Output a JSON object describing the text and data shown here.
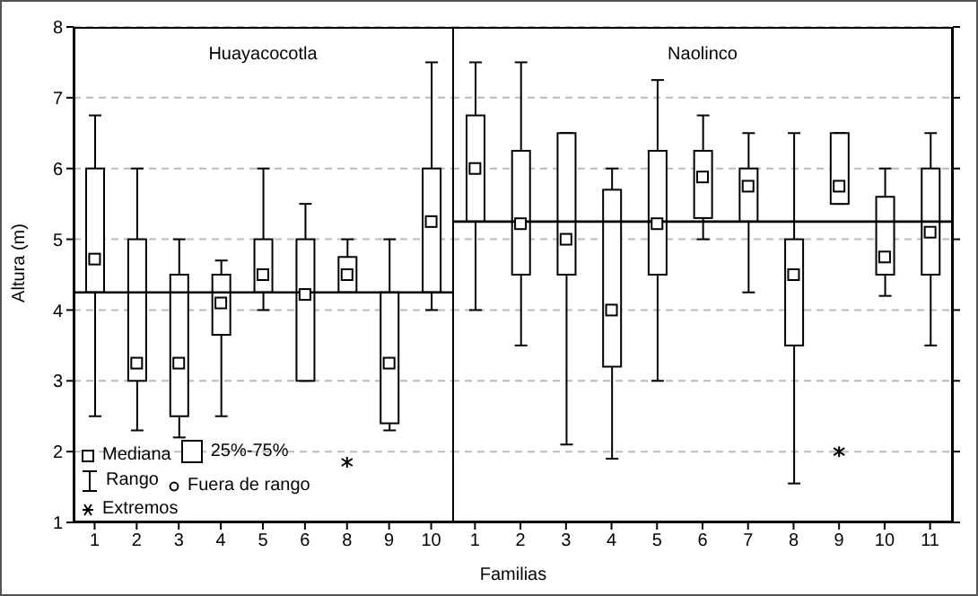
{
  "chart_data": [
    {
      "type": "box",
      "title": "Huayacocotla",
      "ylabel": "Altura (m)",
      "categories": [
        "1",
        "2",
        "3",
        "4",
        "5",
        "6",
        "8",
        "9",
        "10"
      ],
      "ylim": [
        1,
        8
      ],
      "yticks": [
        1,
        2,
        3,
        4,
        5,
        6,
        7,
        8
      ],
      "grid": "y",
      "boxes": [
        {
          "low": 2.5,
          "q1": 4.25,
          "median": 4.72,
          "q3": 6,
          "high": 6.75
        },
        {
          "low": 2.3,
          "q1": 3,
          "median": 3.25,
          "q3": 5,
          "high": 6
        },
        {
          "low": 2.2,
          "q1": 2.5,
          "median": 3.25,
          "q3": 4.5,
          "high": 5
        },
        {
          "low": 2.5,
          "q1": 3.65,
          "median": 4.1,
          "q3": 4.5,
          "high": 4.7
        },
        {
          "low": 4,
          "q1": 4.25,
          "median": 4.5,
          "q3": 5,
          "high": 6
        },
        {
          "low": 3,
          "q1": 3,
          "median": 4.22,
          "q3": 5,
          "high": 5.5
        },
        {
          "low": 4.25,
          "q1": 4.25,
          "median": 4.5,
          "q3": 4.75,
          "high": 5,
          "outliers": [
            1.85
          ]
        },
        {
          "low": 2.3,
          "q1": 2.4,
          "median": 3.25,
          "q3": 4.25,
          "high": 5
        },
        {
          "low": 4,
          "q1": 4.25,
          "median": 5.25,
          "q3": 6,
          "high": 7.5
        }
      ],
      "ref_lines": [
        {
          "axis": "y",
          "value": 4.25
        }
      ],
      "annotations": [
        "Mediana",
        "25%-75%",
        "Rango",
        "Fuera de rango",
        "Extremos"
      ]
    },
    {
      "type": "box",
      "title": "Naolinco",
      "xlabel": "Familias",
      "categories": [
        "1",
        "2",
        "3",
        "4",
        "5",
        "6",
        "7",
        "8",
        "9",
        "10",
        "11"
      ],
      "ylim": [
        1,
        8
      ],
      "yticks": [
        1,
        2,
        3,
        4,
        5,
        6,
        7,
        8
      ],
      "grid": "y",
      "tick_labels": "x",
      "boxes": [
        {
          "low": 4,
          "q1": 5.25,
          "median": 6,
          "q3": 6.75,
          "high": 7.5
        },
        {
          "low": 3.5,
          "q1": 4.5,
          "median": 5.22,
          "q3": 6.25,
          "high": 7.5
        },
        {
          "low": 2.1,
          "q1": 4.5,
          "median": 5,
          "q3": 6.5,
          "high": 6.5
        },
        {
          "low": 1.9,
          "q1": 3.2,
          "median": 4,
          "q3": 5.7,
          "high": 6
        },
        {
          "low": 3,
          "q1": 4.5,
          "median": 5.22,
          "q3": 6.25,
          "high": 7.25
        },
        {
          "low": 5,
          "q1": 5.3,
          "median": 5.88,
          "q3": 6.25,
          "high": 6.75
        },
        {
          "low": 4.25,
          "q1": 5.25,
          "median": 5.75,
          "q3": 6,
          "high": 6.5
        },
        {
          "low": 1.55,
          "q1": 3.5,
          "median": 4.5,
          "q3": 5,
          "high": 6.5
        },
        {
          "low": 5.5,
          "q1": 5.5,
          "median": 5.75,
          "q3": 6.5,
          "high": 6.5,
          "outliers": [
            2
          ]
        },
        {
          "low": 4.2,
          "q1": 4.5,
          "median": 4.75,
          "q3": 5.6,
          "high": 6
        },
        {
          "low": 3.5,
          "q1": 4.5,
          "median": 5.1,
          "q3": 6,
          "high": 6.5
        }
      ],
      "ref_lines": [
        {
          "axis": "y",
          "value": 5.25
        }
      ]
    }
  ]
}
